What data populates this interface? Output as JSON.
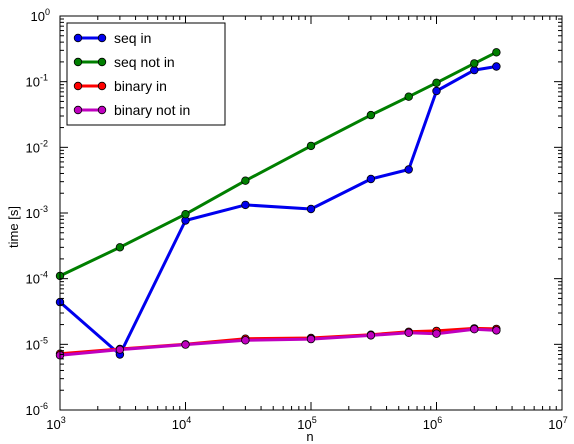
{
  "chart_data": {
    "type": "line",
    "title": "",
    "xlabel": "n",
    "ylabel": "time [s]",
    "x_scale": "log",
    "y_scale": "log",
    "xlim": [
      1000,
      10000000
    ],
    "ylim": [
      1e-06,
      1
    ],
    "grid": false,
    "legend_position": "top-left",
    "x_ticks": [
      {
        "value": 1000,
        "base": "10",
        "exp": "3"
      },
      {
        "value": 10000,
        "base": "10",
        "exp": "4"
      },
      {
        "value": 100000,
        "base": "10",
        "exp": "5"
      },
      {
        "value": 1000000,
        "base": "10",
        "exp": "6"
      },
      {
        "value": 10000000,
        "base": "10",
        "exp": "7"
      }
    ],
    "y_ticks": [
      {
        "value": 1e-06,
        "base": "10",
        "exp": "-6"
      },
      {
        "value": 1e-05,
        "base": "10",
        "exp": "-5"
      },
      {
        "value": 0.0001,
        "base": "10",
        "exp": "-4"
      },
      {
        "value": 0.001,
        "base": "10",
        "exp": "-3"
      },
      {
        "value": 0.01,
        "base": "10",
        "exp": "-2"
      },
      {
        "value": 0.1,
        "base": "10",
        "exp": "-1"
      },
      {
        "value": 1,
        "base": "10",
        "exp": "0"
      }
    ],
    "x": [
      1000,
      3000,
      10000,
      30000,
      100000,
      300000,
      600000,
      1000000,
      2000000,
      3000000
    ],
    "series": [
      {
        "name": "seq in",
        "color": "#0000ee",
        "values": [
          4.4e-05,
          7e-06,
          0.00077,
          0.00133,
          0.00115,
          0.0033,
          0.0046,
          0.072,
          0.15,
          0.17
        ]
      },
      {
        "name": "seq not in",
        "color": "#007f00",
        "values": [
          0.00011,
          0.0003,
          0.00096,
          0.0031,
          0.0105,
          0.031,
          0.059,
          0.096,
          0.19,
          0.28
        ]
      },
      {
        "name": "binary in",
        "color": "#ff0000",
        "values": [
          7.2e-06,
          8.5e-06,
          1e-05,
          1.22e-05,
          1.25e-05,
          1.4e-05,
          1.55e-05,
          1.6e-05,
          1.75e-05,
          1.72e-05
        ]
      },
      {
        "name": "binary not in",
        "color": "#bf00bf",
        "values": [
          6.8e-06,
          8.3e-06,
          9.9e-06,
          1.15e-05,
          1.2e-05,
          1.37e-05,
          1.5e-05,
          1.45e-05,
          1.7e-05,
          1.63e-05
        ]
      }
    ]
  }
}
